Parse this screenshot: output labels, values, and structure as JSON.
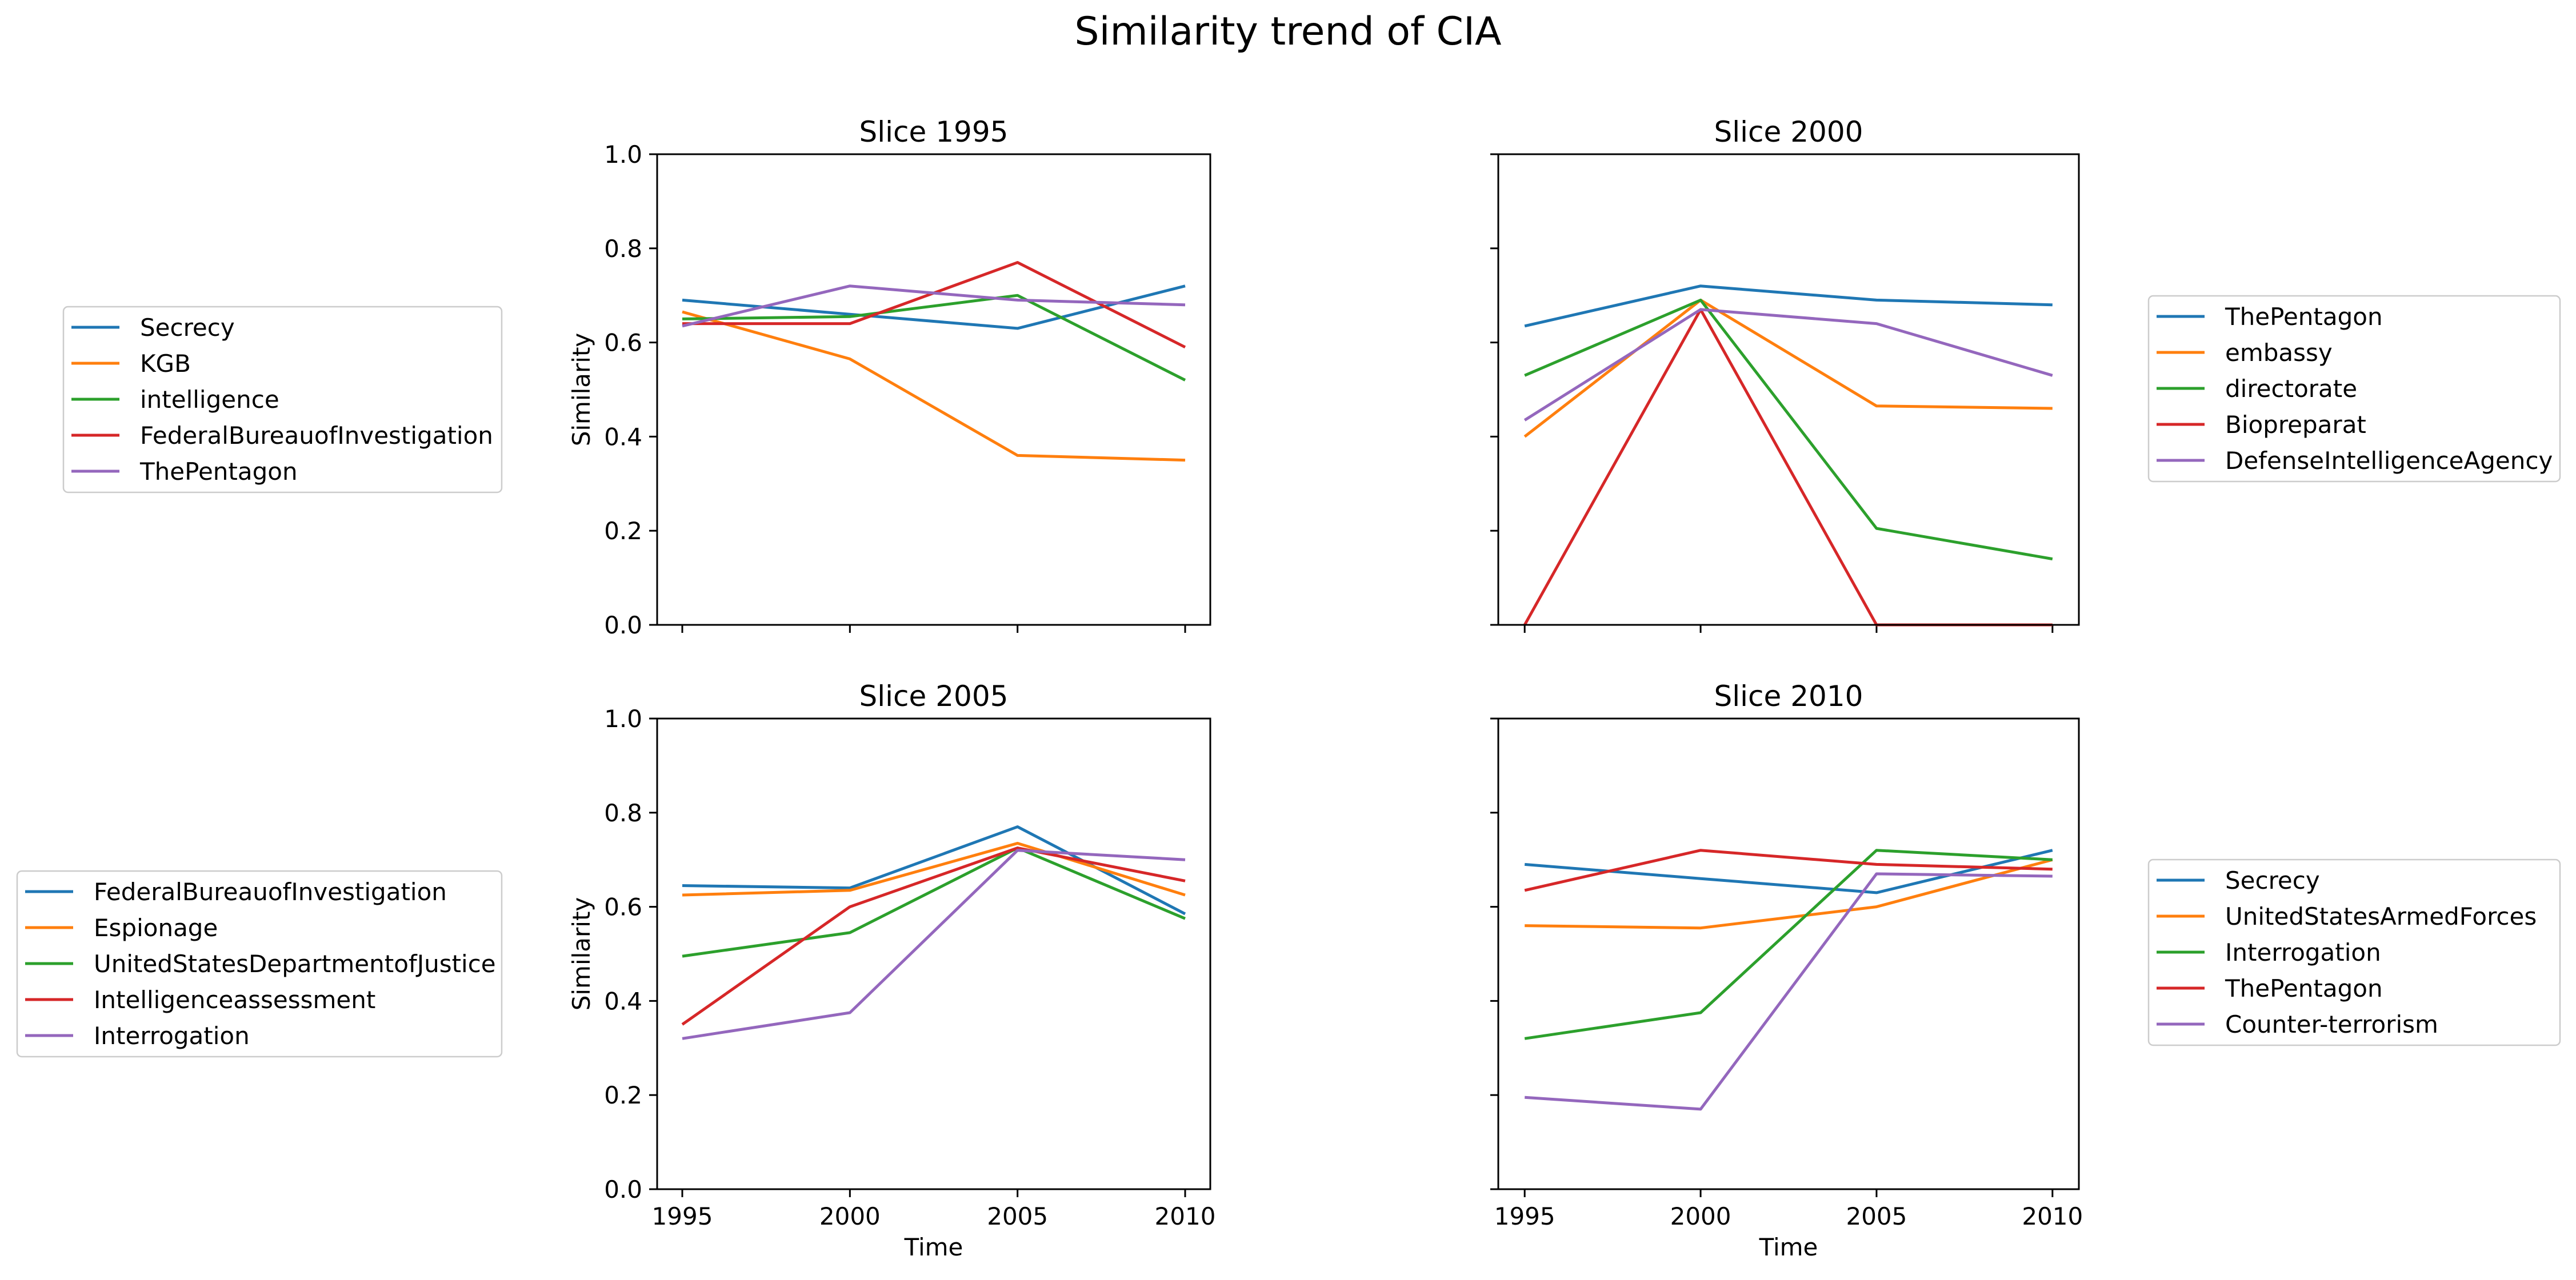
{
  "chart_data": {
    "type": "line",
    "title": "Similarity trend of CIA",
    "panels": [
      {
        "title": "Slice 1995",
        "xlabel": "",
        "ylabel": "Similarity",
        "x": [
          1995,
          2000,
          2005,
          2010
        ],
        "xticks": [
          "1995",
          "2000",
          "2005",
          "2010"
        ],
        "ylim": [
          0,
          1
        ],
        "yticks": [
          "0.0",
          "0.2",
          "0.4",
          "0.6",
          "0.8",
          "1.0"
        ],
        "show_xticklabels": false,
        "show_yticklabels": true,
        "legend_position": "left",
        "series": [
          {
            "name": "Secrecy",
            "color": "#1f77b4",
            "values": [
              0.69,
              0.66,
              0.63,
              0.72
            ]
          },
          {
            "name": "KGB",
            "color": "#ff7f0e",
            "values": [
              0.665,
              0.565,
              0.36,
              0.35
            ]
          },
          {
            "name": "intelligence",
            "color": "#2ca02c",
            "values": [
              0.65,
              0.655,
              0.7,
              0.52
            ]
          },
          {
            "name": "FederalBureauofInvestigation",
            "color": "#d62728",
            "values": [
              0.64,
              0.64,
              0.77,
              0.59
            ]
          },
          {
            "name": "ThePentagon",
            "color": "#9467bd",
            "values": [
              0.635,
              0.72,
              0.69,
              0.68
            ]
          }
        ]
      },
      {
        "title": "Slice 2000",
        "xlabel": "",
        "ylabel": "",
        "x": [
          1995,
          2000,
          2005,
          2010
        ],
        "xticks": [
          "1995",
          "2000",
          "2005",
          "2010"
        ],
        "ylim": [
          0,
          1
        ],
        "yticks": [
          "0.0",
          "0.2",
          "0.4",
          "0.6",
          "0.8",
          "1.0"
        ],
        "show_xticklabels": false,
        "show_yticklabels": false,
        "legend_position": "right",
        "series": [
          {
            "name": "ThePentagon",
            "color": "#1f77b4",
            "values": [
              0.635,
              0.72,
              0.69,
              0.68
            ]
          },
          {
            "name": "embassy",
            "color": "#ff7f0e",
            "values": [
              0.4,
              0.69,
              0.465,
              0.46
            ]
          },
          {
            "name": "directorate",
            "color": "#2ca02c",
            "values": [
              0.53,
              0.69,
              0.205,
              0.14
            ]
          },
          {
            "name": "Biopreparat",
            "color": "#d62728",
            "values": [
              0.0,
              0.67,
              0.0,
              0.0
            ]
          },
          {
            "name": "DefenseIntelligenceAgency",
            "color": "#9467bd",
            "values": [
              0.435,
              0.67,
              0.64,
              0.53
            ]
          }
        ]
      },
      {
        "title": "Slice 2005",
        "xlabel": "Time",
        "ylabel": "Similarity",
        "x": [
          1995,
          2000,
          2005,
          2010
        ],
        "xticks": [
          "1995",
          "2000",
          "2005",
          "2010"
        ],
        "ylim": [
          0,
          1
        ],
        "yticks": [
          "0.0",
          "0.2",
          "0.4",
          "0.6",
          "0.8",
          "1.0"
        ],
        "show_xticklabels": true,
        "show_yticklabels": true,
        "legend_position": "left",
        "series": [
          {
            "name": "FederalBureauofInvestigation",
            "color": "#1f77b4",
            "values": [
              0.645,
              0.64,
              0.77,
              0.585
            ]
          },
          {
            "name": "Espionage",
            "color": "#ff7f0e",
            "values": [
              0.625,
              0.635,
              0.735,
              0.625
            ]
          },
          {
            "name": "UnitedStatesDepartmentofJustice",
            "color": "#2ca02c",
            "values": [
              0.495,
              0.545,
              0.725,
              0.575
            ]
          },
          {
            "name": "Intelligenceassessment",
            "color": "#d62728",
            "values": [
              0.35,
              0.6,
              0.725,
              0.655
            ]
          },
          {
            "name": "Interrogation",
            "color": "#9467bd",
            "values": [
              0.32,
              0.375,
              0.72,
              0.7
            ]
          }
        ]
      },
      {
        "title": "Slice 2010",
        "xlabel": "Time",
        "ylabel": "",
        "x": [
          1995,
          2000,
          2005,
          2010
        ],
        "xticks": [
          "1995",
          "2000",
          "2005",
          "2010"
        ],
        "ylim": [
          0,
          1
        ],
        "yticks": [
          "0.0",
          "0.2",
          "0.4",
          "0.6",
          "0.8",
          "1.0"
        ],
        "show_xticklabels": true,
        "show_yticklabels": false,
        "legend_position": "right",
        "series": [
          {
            "name": "Secrecy",
            "color": "#1f77b4",
            "values": [
              0.69,
              0.66,
              0.63,
              0.72
            ]
          },
          {
            "name": "UnitedStatesArmedForces",
            "color": "#ff7f0e",
            "values": [
              0.56,
              0.555,
              0.6,
              0.7
            ]
          },
          {
            "name": "Interrogation",
            "color": "#2ca02c",
            "values": [
              0.32,
              0.375,
              0.72,
              0.7
            ]
          },
          {
            "name": "ThePentagon",
            "color": "#d62728",
            "values": [
              0.635,
              0.72,
              0.69,
              0.68
            ]
          },
          {
            "name": "Counter-terrorism",
            "color": "#9467bd",
            "values": [
              0.195,
              0.17,
              0.67,
              0.665
            ]
          }
        ]
      }
    ]
  }
}
